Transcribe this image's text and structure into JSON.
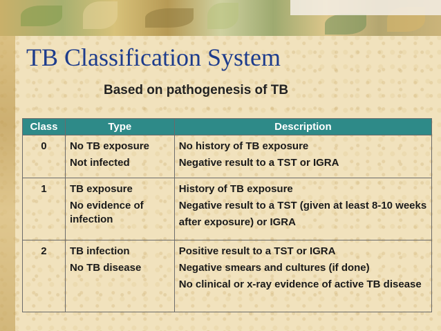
{
  "title": "TB Classification System",
  "subtitle": "Based on pathogenesis of TB",
  "table": {
    "headers": {
      "class": "Class",
      "type": "Type",
      "description": "Description"
    },
    "rows": [
      {
        "class": "0",
        "type": [
          "No TB exposure",
          "Not infected"
        ],
        "description": [
          "No history of TB exposure",
          "Negative result to a TST or IGRA"
        ]
      },
      {
        "class": "1",
        "type": [
          "TB exposure",
          "No evidence of infection"
        ],
        "description": [
          "History of TB exposure",
          "Negative result to a TST (given at least 8-10 weeks after exposure) or IGRA"
        ]
      },
      {
        "class": "2",
        "type": [
          "TB infection",
          "No TB disease"
        ],
        "description": [
          "Positive result to a TST or IGRA",
          "Negative smears and cultures (if done)",
          "No clinical or x-ray evidence of active TB disease"
        ]
      }
    ]
  },
  "colors": {
    "title": "#1d3c8c",
    "header_bg": "#2e8a88",
    "header_text": "#ffffff",
    "background": "#f1e2bd"
  }
}
